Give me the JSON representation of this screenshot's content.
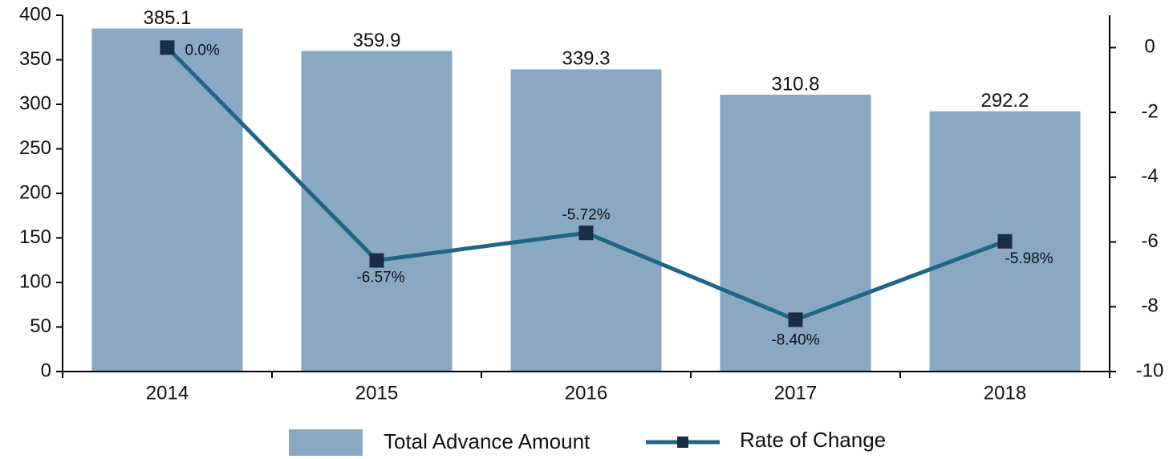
{
  "chart_data": {
    "type": "bar-line",
    "categories": [
      "2014",
      "2015",
      "2016",
      "2017",
      "2018"
    ],
    "series": [
      {
        "name": "Total Advance Amount",
        "type": "bar",
        "color": "#89a8c4",
        "values": [
          385.1,
          359.9,
          339.3,
          310.8,
          292.2
        ]
      },
      {
        "name": "Rate of Change",
        "type": "line",
        "axis": "y2",
        "color": "#1f6585",
        "marker_color": "#1b2d44",
        "values": [
          0.0,
          -6.57,
          -5.72,
          -8.4,
          -5.98
        ],
        "value_labels": [
          "0.0%",
          "-6.57%",
          "-5.72%",
          "-8.40%",
          "-5.98%"
        ]
      }
    ],
    "ylim": [
      0,
      400
    ],
    "yticks": [
      0,
      50,
      100,
      150,
      200,
      250,
      300,
      350,
      400
    ],
    "y2lim": [
      -10,
      1
    ],
    "y2ticks": [
      0,
      -2,
      -4,
      -6,
      -8,
      -10
    ],
    "legend": "bottom"
  }
}
